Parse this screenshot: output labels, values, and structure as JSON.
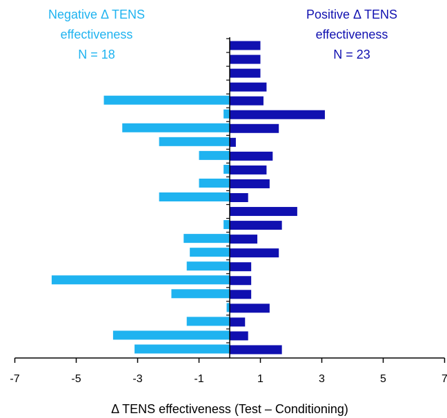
{
  "chart_data": {
    "type": "diverging-bar",
    "x_label": "Δ TENS effectiveness  (Test – Conditioning)",
    "categories": [
      null,
      null,
      null,
      null,
      null,
      null,
      null,
      null,
      null,
      null,
      null,
      null,
      null,
      null,
      null,
      null,
      null,
      null,
      null,
      null,
      null,
      null,
      null
    ],
    "series": [
      {
        "name": [
          "Negative Δ TENS",
          "effectiveness",
          "N = 18"
        ],
        "color": "#1fb3f0",
        "values": [
          null,
          null,
          null,
          null,
          -4.1,
          -0.2,
          -3.5,
          -2.3,
          -1.0,
          -0.2,
          -1.0,
          -2.3,
          null,
          -0.2,
          -1.5,
          -1.3,
          -1.4,
          -5.8,
          -1.9,
          -0.1,
          -1.4,
          -3.8,
          -3.1
        ]
      },
      {
        "name": [
          "Positive Δ TENS",
          "effectiveness",
          "N = 23"
        ],
        "color": "#1010b0",
        "values": [
          1.0,
          1.0,
          1.0,
          1.2,
          1.1,
          3.1,
          1.6,
          0.2,
          1.4,
          1.2,
          1.3,
          0.6,
          2.2,
          1.7,
          0.9,
          1.6,
          0.7,
          0.7,
          0.7,
          1.3,
          0.5,
          0.6,
          1.7
        ]
      }
    ],
    "xlim": [
      -7,
      7
    ],
    "xticks": [
      -7,
      -5,
      -3,
      -1,
      1,
      3,
      5,
      7
    ]
  }
}
